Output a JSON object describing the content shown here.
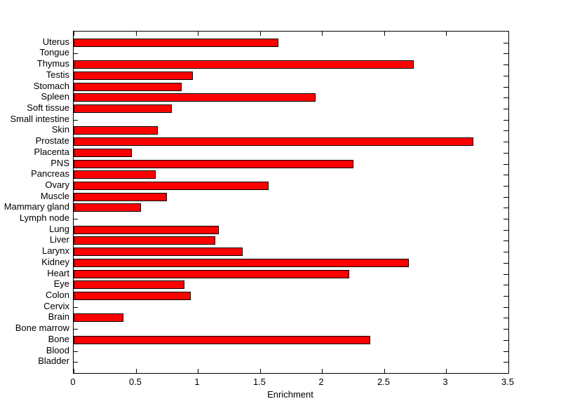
{
  "chart_data": {
    "type": "bar",
    "orientation": "horizontal",
    "title": "",
    "xlabel": "Enrichment",
    "ylabel": "",
    "xlim": [
      0,
      3.5
    ],
    "xticks": [
      0,
      0.5,
      1,
      1.5,
      2,
      2.5,
      3,
      3.5
    ],
    "xticklabels": [
      "0",
      "0.5",
      "1",
      "1.5",
      "2",
      "2.5",
      "3",
      "3.5"
    ],
    "grid": false,
    "legend": null,
    "bar_color": "#ff0000",
    "bar_edge_color": "#000000",
    "axis_color": "#000000",
    "background_color": "#ffffff",
    "categories_order": "top-to-bottom",
    "categories": [
      "Uterus",
      "Tongue",
      "Thymus",
      "Testis",
      "Stomach",
      "Spleen",
      "Soft tissue",
      "Small intestine",
      "Skin",
      "Prostate",
      "Placenta",
      "PNS",
      "Pancreas",
      "Ovary",
      "Muscle",
      "Mammary gland",
      "Lymph node",
      "Lung",
      "Liver",
      "Larynx",
      "Kidney",
      "Heart",
      "Eye",
      "Colon",
      "Cervix",
      "Brain",
      "Bone marrow",
      "Bone",
      "Blood",
      "Bladder"
    ],
    "values": [
      1.65,
      0,
      2.74,
      0.96,
      0.87,
      1.95,
      0.79,
      0,
      0.68,
      3.22,
      0.47,
      2.25,
      0.66,
      1.57,
      0.75,
      0.54,
      0,
      1.17,
      1.14,
      1.36,
      2.7,
      2.22,
      0.89,
      0.94,
      0,
      0.4,
      0,
      2.39,
      0,
      0
    ]
  }
}
